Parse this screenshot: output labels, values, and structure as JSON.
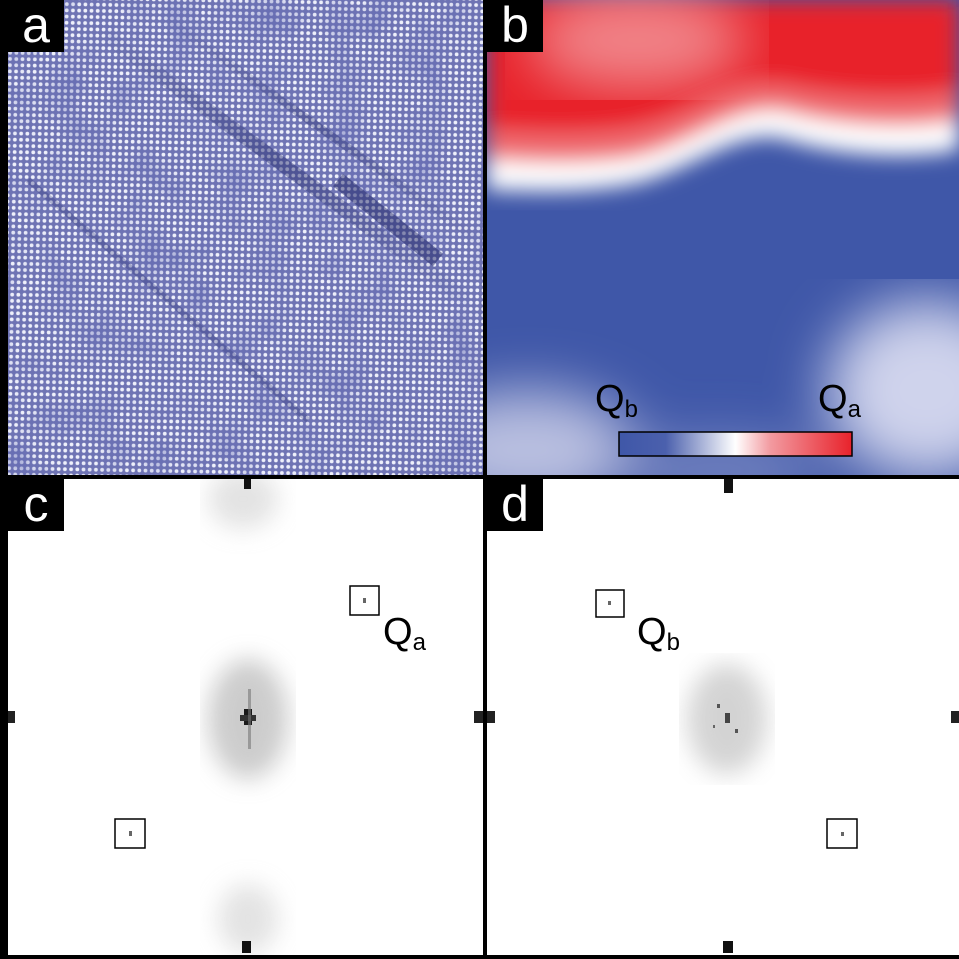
{
  "panels": {
    "a": {
      "letter": "a"
    },
    "b": {
      "letter": "b",
      "colorbar": {
        "left_label": {
          "main": "Q",
          "sub": "b"
        },
        "right_label": {
          "main": "Q",
          "sub": "a"
        },
        "colors": {
          "low": "#3f57a8",
          "mid": "#ffffff",
          "high": "#e8222b"
        }
      }
    },
    "c": {
      "letter": "c",
      "peak_label": {
        "main": "Q",
        "sub": "a"
      }
    },
    "d": {
      "letter": "d",
      "peak_label": {
        "main": "Q",
        "sub": "b"
      }
    }
  }
}
